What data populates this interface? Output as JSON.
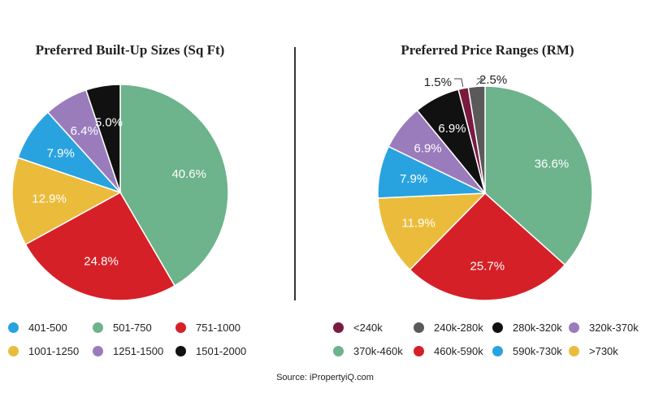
{
  "chart_data": [
    {
      "type": "pie",
      "title": "Preferred Built-Up Sizes (Sq Ft)",
      "slices": [
        {
          "label": "501-750",
          "value": 40.6,
          "value_label": "40.6%",
          "color": "#6db38c"
        },
        {
          "label": "751-1000",
          "value": 24.8,
          "value_label": "24.8%",
          "color": "#d62027"
        },
        {
          "label": "1001-1250",
          "value": 12.9,
          "value_label": "12.9%",
          "color": "#ebbc3c"
        },
        {
          "label": "401-500",
          "value": 7.9,
          "value_label": "7.9%",
          "color": "#29a3e0"
        },
        {
          "label": "1251-1500",
          "value": 6.4,
          "value_label": "6.4%",
          "color": "#9a7cbd"
        },
        {
          "label": "1501-2000",
          "value": 5.0,
          "value_label": "5.0%",
          "color": "#111111"
        }
      ],
      "legend": [
        "401-500",
        "501-750",
        "751-1000",
        "1001-1250",
        "1251-1500",
        "1501-2000"
      ]
    },
    {
      "type": "pie",
      "title": "Preferred Price Ranges (RM)",
      "slices": [
        {
          "label": "370k-460k",
          "value": 36.6,
          "value_label": "36.6%",
          "color": "#6db38c"
        },
        {
          "label": "460k-590k",
          "value": 25.7,
          "value_label": "25.7%",
          "color": "#d62027"
        },
        {
          "label": ">730k",
          "value": 11.9,
          "value_label": "11.9%",
          "color": "#ebbc3c"
        },
        {
          "label": "590k-730k",
          "value": 7.9,
          "value_label": "7.9%",
          "color": "#29a3e0"
        },
        {
          "label": "320k-370k",
          "value": 6.9,
          "value_label": "6.9%",
          "color": "#9a7cbd"
        },
        {
          "label": "280k-320k",
          "value": 6.9,
          "value_label": "6.9%",
          "color": "#111111"
        },
        {
          "label": "<240k",
          "value": 1.5,
          "value_label": "1.5%",
          "color": "#7b1a41"
        },
        {
          "label": "240k-280k",
          "value": 2.5,
          "value_label": "2.5%",
          "color": "#5a5a5a"
        }
      ],
      "legend": [
        "<240k",
        "240k-280k",
        "280k-320k",
        "320k-370k",
        "370k-460k",
        "460k-590k",
        "590k-730k",
        ">730k"
      ]
    }
  ],
  "source": "Source: iPropertyiQ.com"
}
